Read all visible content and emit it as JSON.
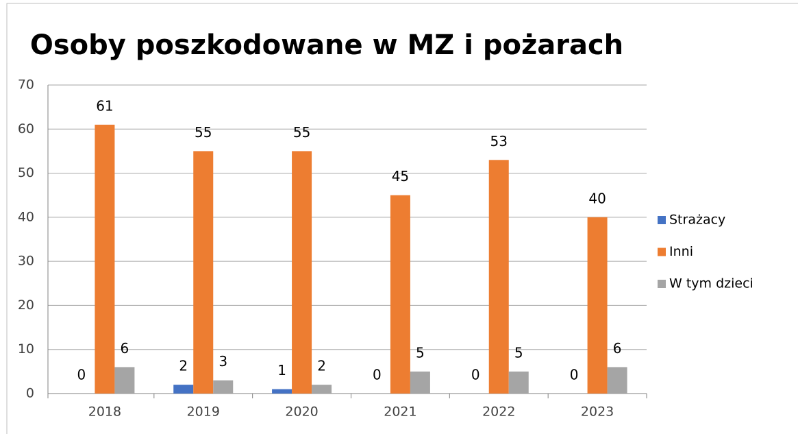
{
  "chart_data": {
    "type": "bar",
    "title": "Osoby poszkodowane w MZ i pożarach",
    "categories": [
      "2018",
      "2019",
      "2020",
      "2021",
      "2022",
      "2023"
    ],
    "series": [
      {
        "name": "Strażacy",
        "color": "#4472c4",
        "values": [
          0,
          2,
          1,
          0,
          0,
          0
        ]
      },
      {
        "name": "Inni",
        "color": "#ed7d31",
        "values": [
          61,
          55,
          55,
          45,
          53,
          40
        ]
      },
      {
        "name": "W tym dzieci",
        "color": "#a5a5a5",
        "values": [
          6,
          3,
          2,
          5,
          5,
          6
        ]
      }
    ],
    "ylim": [
      0,
      70
    ],
    "yticks": [
      0,
      10,
      20,
      30,
      40,
      50,
      60,
      70
    ],
    "grid": true,
    "legend": "right"
  }
}
